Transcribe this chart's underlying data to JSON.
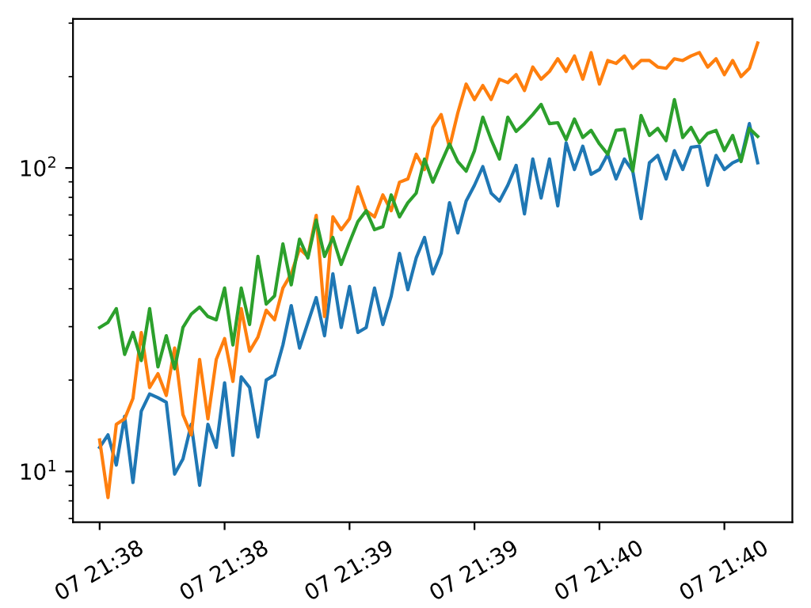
{
  "chart_data": {
    "type": "line",
    "log": "y",
    "grid": false,
    "legend": false,
    "marker": "none",
    "line_style": "solid",
    "ylim": [
      6.8,
      310
    ],
    "yticks": [
      {
        "value": 10,
        "label": "10$^{1}$"
      },
      {
        "value": 100,
        "label": "10$^{2}$"
      }
    ],
    "categories": [
      "07 21:38",
      null,
      null,
      null,
      null,
      null,
      null,
      null,
      null,
      null,
      null,
      null,
      null,
      null,
      null,
      "07 21:38",
      null,
      null,
      null,
      null,
      null,
      null,
      null,
      null,
      null,
      null,
      null,
      null,
      null,
      null,
      "07 21:39",
      null,
      null,
      null,
      null,
      null,
      null,
      null,
      null,
      null,
      null,
      null,
      null,
      null,
      null,
      "07 21:39",
      null,
      null,
      null,
      null,
      null,
      null,
      null,
      null,
      null,
      null,
      null,
      null,
      null,
      null,
      "07 21:40",
      null,
      null,
      null,
      null,
      null,
      null,
      null,
      null,
      null,
      null,
      null,
      null,
      null,
      null,
      "07 21:40",
      null,
      null,
      null,
      null
    ],
    "series": [
      {
        "color": "#1f77b4",
        "values": [
          12.0,
          13.2,
          10.5,
          15.2,
          9.2,
          15.8,
          18.0,
          17.5,
          16.9,
          9.8,
          11.0,
          14.3,
          9.0,
          14.3,
          12.0,
          19.6,
          11.3,
          20.5,
          18.9,
          13.0,
          20.0,
          20.8,
          26.1,
          35.2,
          25.5,
          30.9,
          37.4,
          28.0,
          44.8,
          29.8,
          40.7,
          28.7,
          29.8,
          40.2,
          30.5,
          37.8,
          52.3,
          39.7,
          50.5,
          59.0,
          44.8,
          52.3,
          76.8,
          61.1,
          77.8,
          87.7,
          101,
          82.6,
          77.8,
          87.7,
          102,
          70.6,
          107,
          79.6,
          107,
          75.0,
          121,
          98.8,
          118,
          95.3,
          98.8,
          111,
          92.0,
          107,
          97.6,
          68.1,
          104,
          110,
          92.0,
          114,
          98.8,
          117,
          118,
          87.7,
          110,
          98.8,
          104,
          107,
          140,
          104
        ]
      },
      {
        "color": "#ff7f0e",
        "values": [
          12.7,
          8.2,
          14.3,
          14.9,
          17.4,
          28.7,
          18.9,
          21.0,
          17.8,
          25.5,
          15.4,
          13.2,
          23.4,
          14.9,
          23.4,
          27.4,
          19.8,
          34.4,
          24.9,
          27.7,
          34.0,
          31.6,
          40.2,
          44.8,
          54.2,
          51.1,
          69.8,
          32.4,
          69.0,
          62.6,
          68.1,
          86.6,
          72.3,
          69.0,
          81.5,
          72.3,
          89.8,
          92.0,
          111,
          98.8,
          136,
          150,
          117,
          152,
          189,
          168,
          187,
          168,
          196,
          191,
          203,
          180,
          215,
          196,
          208,
          229,
          208,
          234,
          196,
          240,
          189,
          226,
          221,
          234,
          213,
          226,
          226,
          215,
          213,
          229,
          226,
          234,
          240,
          215,
          229,
          203,
          226,
          200,
          213,
          258
        ]
      },
      {
        "color": "#2ca02c",
        "values": [
          29.8,
          31.0,
          34.4,
          24.3,
          28.7,
          23.2,
          34.4,
          22.1,
          28.0,
          21.8,
          29.8,
          33.0,
          34.8,
          32.4,
          31.6,
          40.2,
          26.1,
          40.2,
          30.5,
          51.1,
          35.6,
          37.9,
          56.2,
          41.2,
          58.3,
          50.5,
          67.3,
          51.1,
          59.0,
          48.1,
          56.9,
          66.5,
          72.3,
          62.6,
          64.1,
          81.5,
          69.0,
          76.8,
          82.6,
          107,
          89.8,
          104,
          120,
          105,
          97.6,
          114,
          147,
          124,
          107,
          147,
          132,
          140,
          150,
          162,
          140,
          141,
          124,
          145,
          126,
          133,
          120,
          111,
          133,
          134,
          97.6,
          149,
          128,
          135,
          123,
          168,
          126,
          136,
          121,
          130,
          133,
          114,
          128,
          105,
          135,
          127
        ]
      }
    ]
  }
}
